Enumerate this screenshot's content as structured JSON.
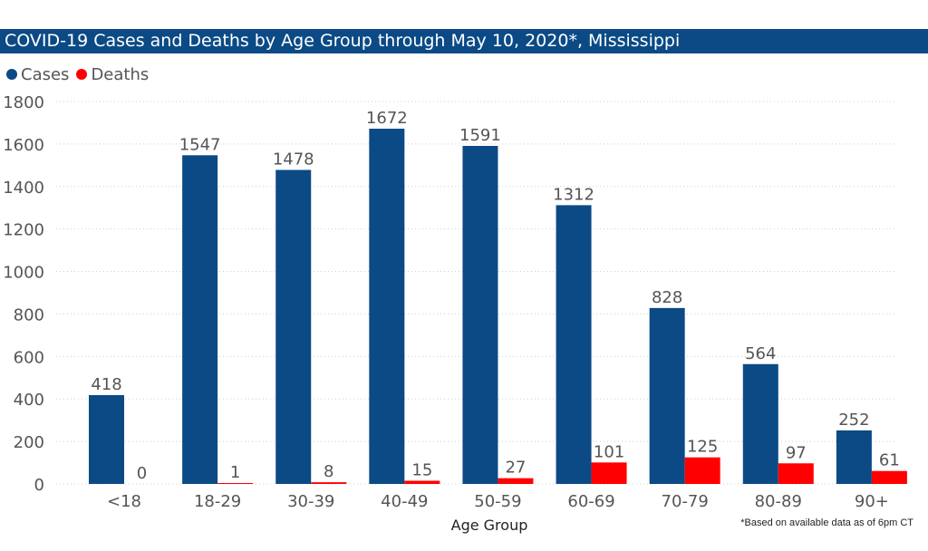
{
  "title": "COVID-19 Cases and Deaths by Age Group through May 10, 2020*, Mississippi",
  "footnote": "*Based on available data as of 6pm CT",
  "colors": {
    "cases": "#0b4a85",
    "deaths": "#ff0000",
    "title_bg": "#0b4a85",
    "axis_text": "#555555",
    "grid": "#cfcfcf"
  },
  "chart_data": {
    "type": "bar",
    "xlabel": "Age Group",
    "ylabel": "",
    "ylim": [
      0,
      1800
    ],
    "yticks": [
      0,
      200,
      400,
      600,
      800,
      1000,
      1200,
      1400,
      1600,
      1800
    ],
    "grid": true,
    "legend_position": "top-left",
    "categories": [
      "<18",
      "18-29",
      "30-39",
      "40-49",
      "50-59",
      "60-69",
      "70-79",
      "80-89",
      "90+"
    ],
    "series": [
      {
        "name": "Cases",
        "color": "#0b4a85",
        "values": [
          418,
          1547,
          1478,
          1672,
          1591,
          1312,
          828,
          564,
          252
        ]
      },
      {
        "name": "Deaths",
        "color": "#ff0000",
        "values": [
          0,
          1,
          8,
          15,
          27,
          101,
          125,
          97,
          61
        ]
      }
    ]
  }
}
